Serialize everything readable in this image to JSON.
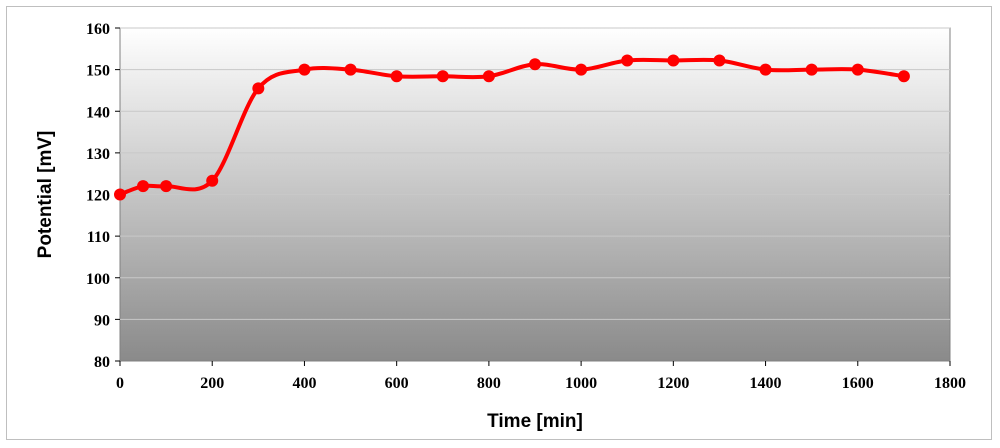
{
  "chart_data": {
    "type": "line",
    "title": "",
    "xlabel": "Time [min]",
    "ylabel": "Potential [mV]",
    "xlim": [
      0,
      1800
    ],
    "ylim": [
      80,
      160
    ],
    "xticks": [
      0,
      200,
      400,
      600,
      800,
      1000,
      1200,
      1400,
      1600,
      1800
    ],
    "yticks": [
      80,
      90,
      100,
      110,
      120,
      130,
      140,
      150,
      160
    ],
    "grid": "horizontal",
    "legend": "none",
    "series": [
      {
        "color": "#ff0000",
        "x": [
          0,
          50,
          100,
          200,
          300,
          400,
          500,
          600,
          700,
          800,
          900,
          1000,
          1100,
          1200,
          1300,
          1400,
          1500,
          1600,
          1700
        ],
        "y": [
          120,
          122,
          122,
          123.3,
          145.5,
          150,
          150,
          148.4,
          148.4,
          148.4,
          151.3,
          150,
          152.2,
          152.2,
          152.2,
          150,
          150,
          150,
          148.4
        ]
      }
    ]
  }
}
